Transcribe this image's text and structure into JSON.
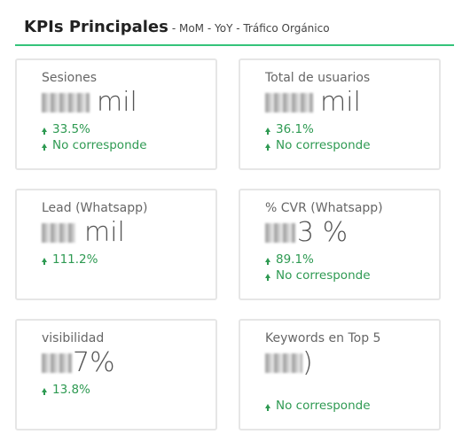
{
  "header": {
    "title": "KPIs Principales",
    "subtitle": "- MoM - YoY - Tráfico Orgánico"
  },
  "cards": [
    {
      "label": "Sesiones",
      "value_suffix": "mil",
      "trend1": "33.5%",
      "trend2": "No corresponde"
    },
    {
      "label": "Total de usuarios",
      "value_suffix": "mil",
      "trend1": "36.1%",
      "trend2": "No corresponde"
    },
    {
      "label": "Lead (Whatsapp)",
      "value_suffix": "mil",
      "trend1": "111.2%"
    },
    {
      "label": "% CVR (Whatsapp)",
      "value_suffix": "3 %",
      "trend1": "89.1%",
      "trend2": "No corresponde"
    },
    {
      "label": "visibilidad",
      "value_suffix": "7%",
      "trend1": "13.8%"
    },
    {
      "label": "Keywords en Top 5",
      "value_suffix": ")",
      "trend2": "No corresponde"
    }
  ],
  "colors": {
    "accent": "#34c37a",
    "positive": "#2e9a52"
  },
  "icons": {
    "trend_up": "arrow-up-icon"
  }
}
